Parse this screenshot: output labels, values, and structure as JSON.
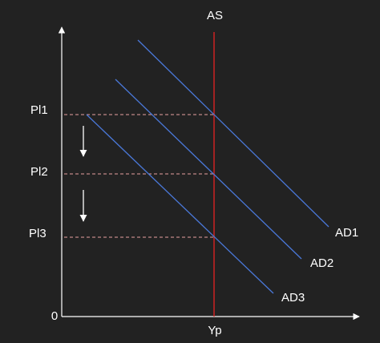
{
  "axes": {
    "origin": "0",
    "x_label": "Yp"
  },
  "supply": {
    "label": "AS"
  },
  "demand_curves": [
    {
      "label": "AD1"
    },
    {
      "label": "AD2"
    },
    {
      "label": "AD3"
    }
  ],
  "price_levels": [
    {
      "label": "Pl1"
    },
    {
      "label": "Pl2"
    },
    {
      "label": "Pl3"
    }
  ]
}
